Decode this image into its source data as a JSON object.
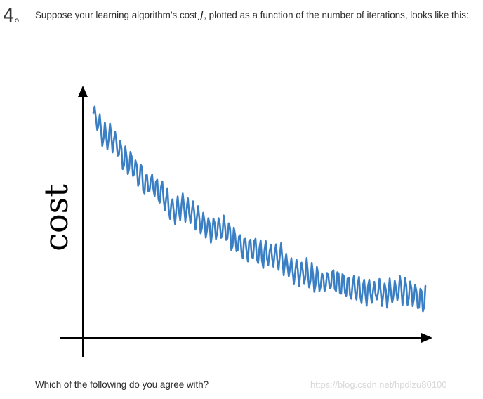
{
  "question": {
    "number": "4",
    "separator": "。",
    "text_before": "Suppose your learning algorithm’s cost ",
    "math_symbol": "J",
    "text_after": ", plotted as a function of the number of iterations, looks like this:",
    "followup": "Which of the following do you agree with?"
  },
  "watermark": "https://blog.csdn.net/hpdlzu80100",
  "chart_data": {
    "type": "line",
    "title": "",
    "xlabel": "",
    "ylabel": "cost",
    "axis_ticks": false,
    "grid": false,
    "legend": "none",
    "color": "#3a7fc4",
    "trend": "noisy oscillating decrease",
    "x": [
      0,
      3,
      6,
      9,
      12,
      15,
      18,
      21,
      24,
      27,
      30,
      33,
      36,
      39,
      42,
      45,
      48,
      51,
      54,
      57,
      60,
      63,
      66,
      69,
      72,
      75,
      78,
      81,
      84,
      87,
      90,
      93,
      96,
      99,
      100
    ],
    "y": [
      0.97,
      0.87,
      0.85,
      0.76,
      0.72,
      0.65,
      0.63,
      0.58,
      0.52,
      0.53,
      0.5,
      0.44,
      0.42,
      0.43,
      0.38,
      0.35,
      0.33,
      0.3,
      0.3,
      0.28,
      0.23,
      0.22,
      0.2,
      0.18,
      0.19,
      0.17,
      0.15,
      0.14,
      0.13,
      0.13,
      0.13,
      0.14,
      0.12,
      0.09,
      0.1
    ],
    "xlim": [
      0,
      100
    ],
    "ylim": [
      0,
      1
    ]
  }
}
